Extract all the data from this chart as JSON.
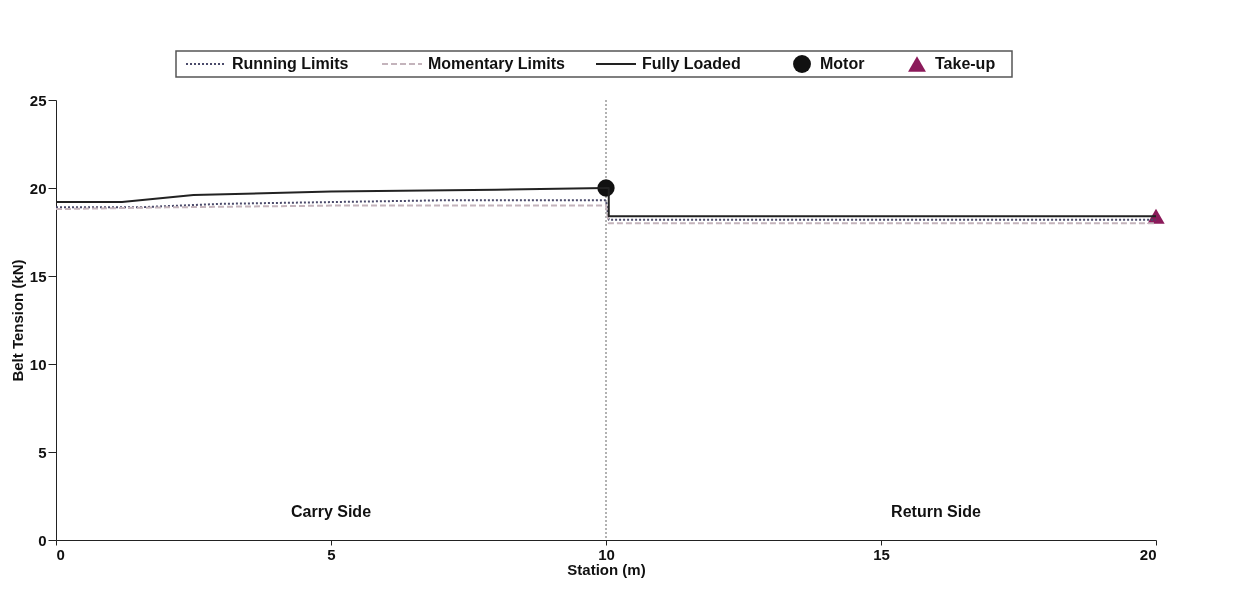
{
  "chart_data": {
    "type": "line",
    "xlabel": "Station (m)",
    "ylabel": "Belt Tension (kN)",
    "xlim": [
      0,
      20
    ],
    "xticks": [
      0,
      5,
      10,
      15,
      20
    ],
    "ylim": [
      0,
      25
    ],
    "yticks": [
      0,
      5,
      10,
      15,
      20,
      25
    ],
    "grid": false,
    "legend": "top",
    "series": [
      {
        "name": "Running Limits",
        "color": "#4a4a6a",
        "line_style": "dotted",
        "x": [
          0,
          1.5,
          3,
          5,
          7,
          9,
          10,
          10.05,
          20
        ],
        "values": [
          18.9,
          18.9,
          19.1,
          19.2,
          19.3,
          19.3,
          19.3,
          18.2,
          18.2
        ]
      },
      {
        "name": "Momentary Limits",
        "color": "#c4b4bc",
        "line_style": "dashed",
        "x": [
          0,
          2,
          5,
          10,
          10.05,
          20
        ],
        "values": [
          18.8,
          18.9,
          19.0,
          19.0,
          18.0,
          18.0
        ]
      },
      {
        "name": "Fully Loaded",
        "color": "#222222",
        "line_style": "solid",
        "x": [
          0,
          1.2,
          2.5,
          5,
          8,
          10,
          10.05,
          10.05,
          20
        ],
        "values": [
          19.2,
          19.2,
          19.6,
          19.8,
          19.9,
          20.0,
          20.0,
          18.4,
          18.4
        ]
      },
      {
        "name": "Motor",
        "type": "scatter",
        "marker": "circle",
        "color": "#111111",
        "x": [
          10
        ],
        "values": [
          20.0
        ]
      },
      {
        "name": "Take-up",
        "type": "scatter",
        "marker": "triangle",
        "color": "#8b1a5a",
        "x": [
          20
        ],
        "values": [
          18.4
        ]
      }
    ],
    "ref_lines": [
      {
        "axis": "x",
        "value": 10,
        "color": "#999999",
        "line_style": "dotted"
      }
    ],
    "annotations": [
      "Carry Side",
      "Return Side"
    ]
  }
}
